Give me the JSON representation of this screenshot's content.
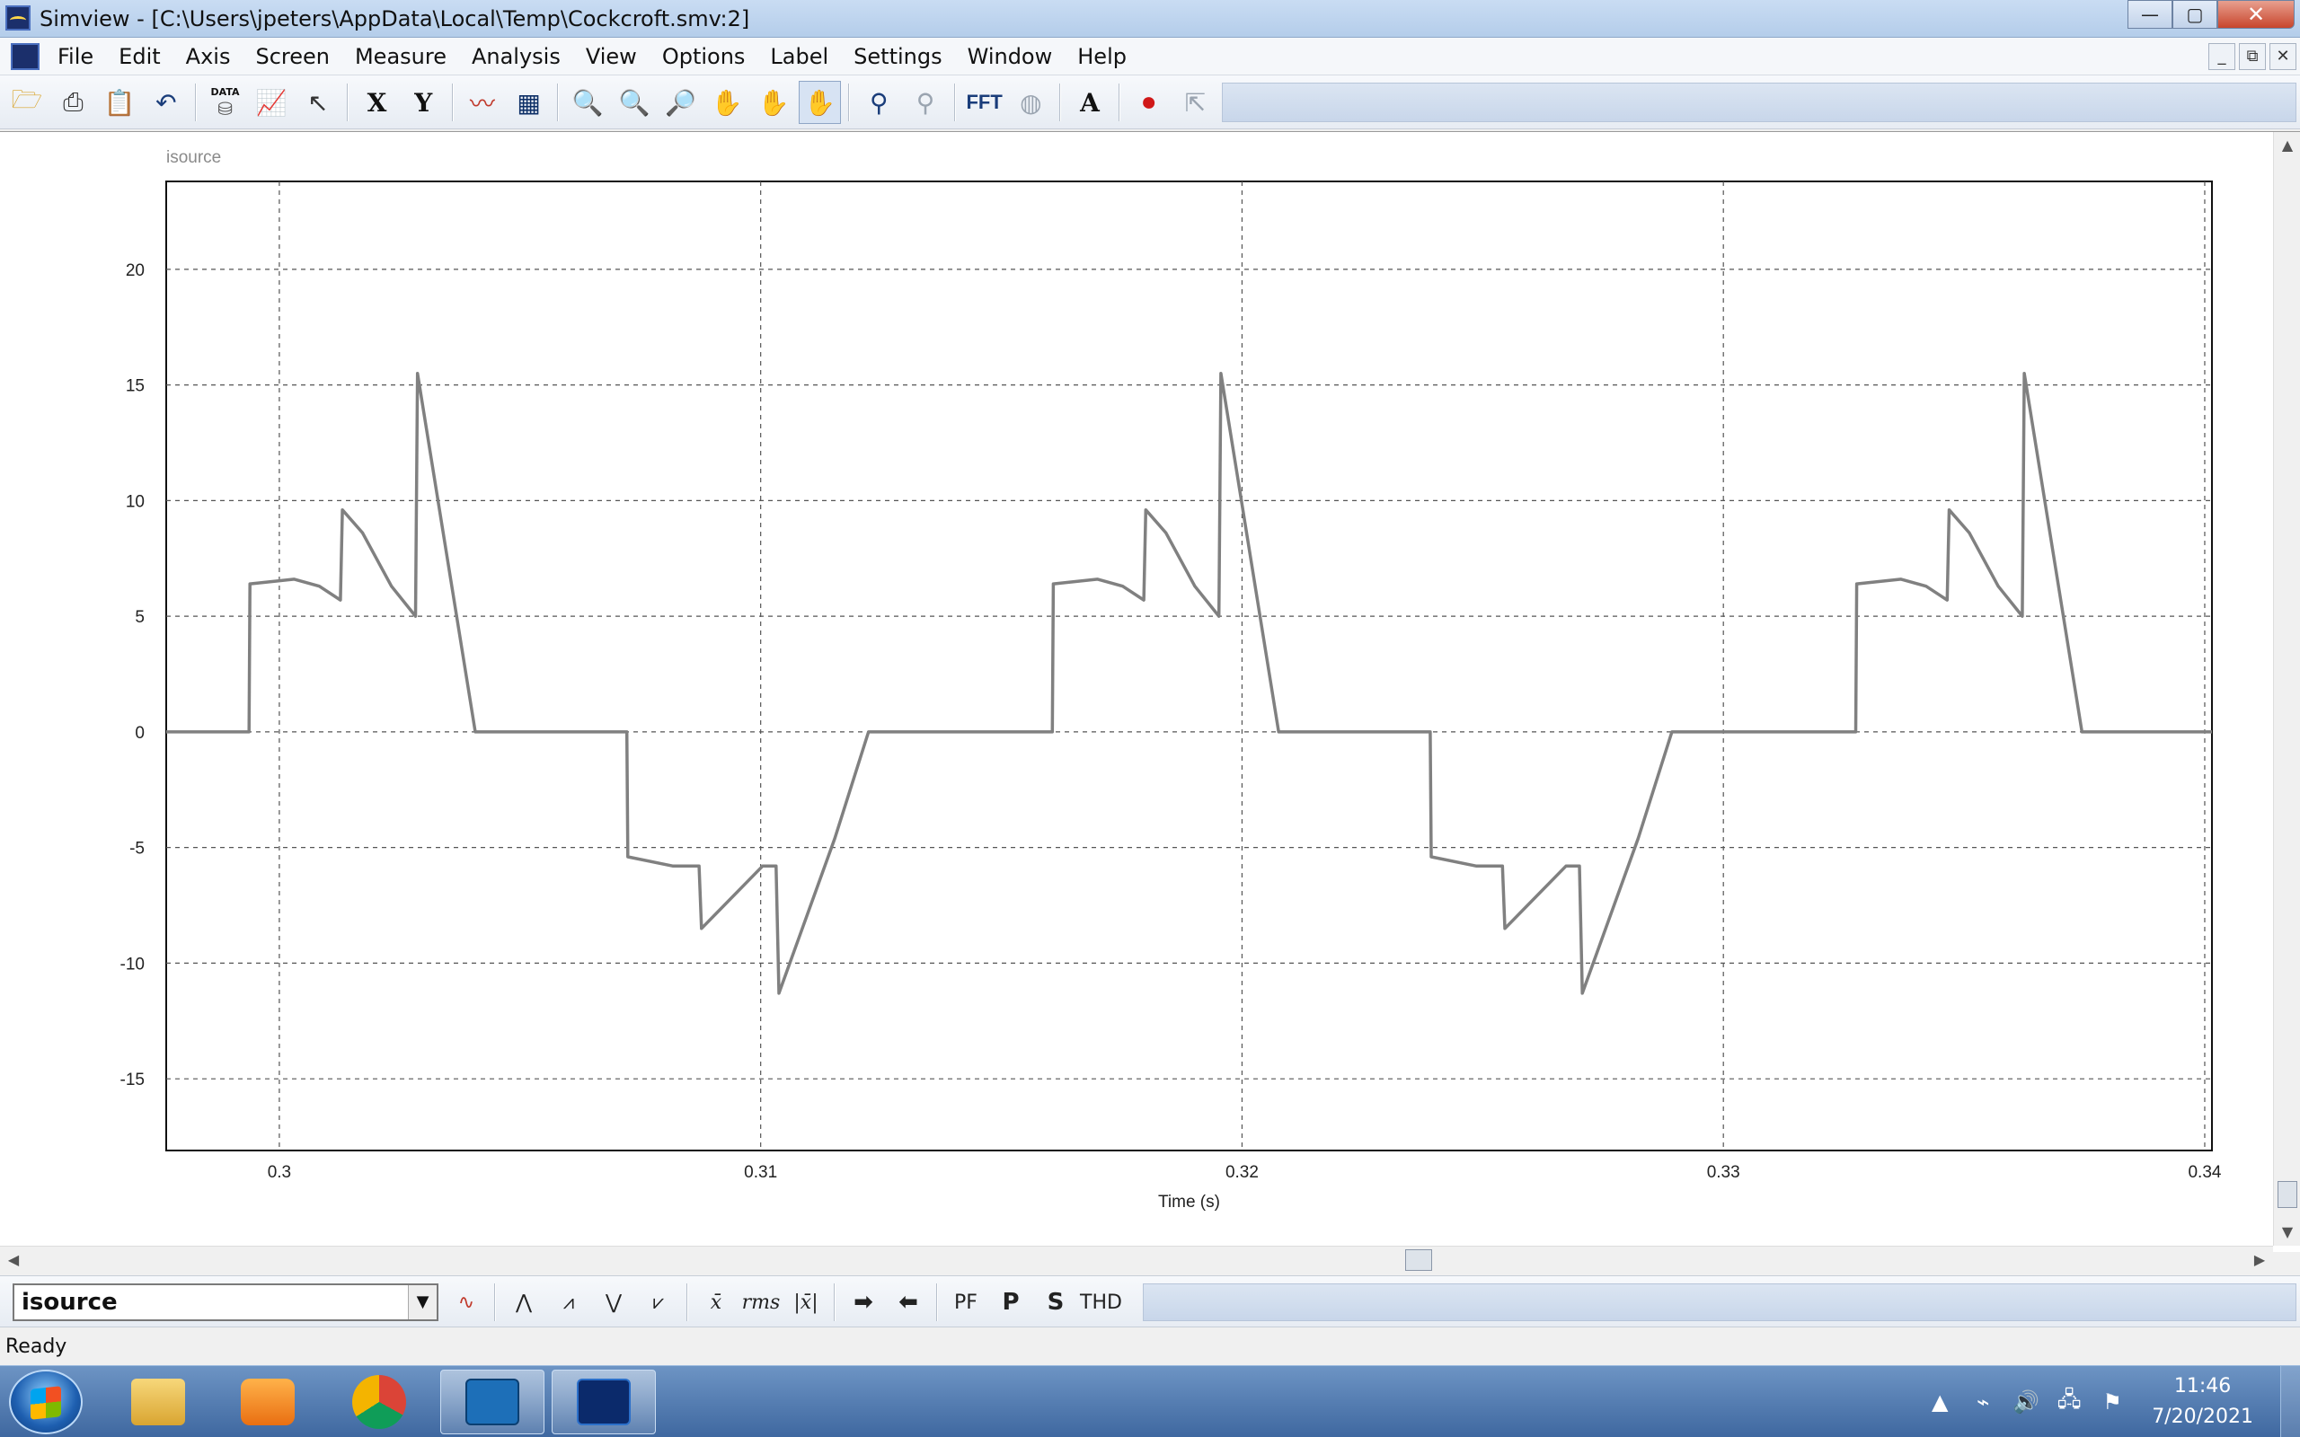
{
  "window": {
    "title": "Simview - [C:\\Users\\jpeters\\AppData\\Local\\Temp\\Cockcroft.smv:2]",
    "min_glyph": "—",
    "max_glyph": "▢",
    "close_glyph": "✕"
  },
  "mdi_controls": [
    "_",
    "⧉",
    "✕"
  ],
  "menu": [
    "File",
    "Edit",
    "Axis",
    "Screen",
    "Measure",
    "Analysis",
    "View",
    "Options",
    "Label",
    "Settings",
    "Window",
    "Help"
  ],
  "toolbar": {
    "x_axis_label": "X",
    "y_axis_label": "Y",
    "fft_label": "FFT",
    "text_label": "A",
    "data_label": "DATA"
  },
  "plot": {
    "trace_name": "isource",
    "x_axis_title": "Time (s)"
  },
  "chart_data": {
    "type": "line",
    "title": "isource",
    "xlabel": "Time (s)",
    "ylabel": "",
    "xlim": [
      0.29765,
      0.34015
    ],
    "ylim": [
      -18.1,
      23.8
    ],
    "grid": true,
    "x_ticks": [
      0.3,
      0.31,
      0.32,
      0.33,
      0.34
    ],
    "x_tick_labels": [
      "0.3",
      "0.31",
      "0.32",
      "0.33",
      "0.34"
    ],
    "y_ticks": [
      20,
      15,
      10,
      5,
      0,
      -5,
      -10,
      -15
    ],
    "y_tick_labels": [
      "20",
      "15",
      "10",
      "5",
      "0",
      "-5",
      "-10",
      "-15"
    ],
    "period": 0.01669,
    "series": [
      {
        "name": "isource",
        "color": "#808080",
        "period_template": {
          "x": [
            0.29765,
            0.29937,
            0.29939,
            0.30031,
            0.30083,
            0.30127,
            0.30131,
            0.30173,
            0.30233,
            0.30283,
            0.30287,
            0.30407,
            0.30722,
            0.30724,
            0.30818,
            0.30872,
            0.30877,
            0.31004,
            0.31032,
            0.31038,
            0.31154,
            0.31224,
            0.31434
          ],
          "y": [
            0,
            0,
            6.4,
            6.6,
            6.3,
            5.7,
            9.6,
            8.6,
            6.3,
            5.0,
            15.5,
            0,
            0,
            -5.4,
            -5.8,
            -5.8,
            -8.5,
            -5.8,
            -5.8,
            -11.3,
            -4.6,
            0,
            0
          ]
        },
        "x_end": 0.34015,
        "y_end": 0
      }
    ]
  },
  "bottom_bar": {
    "selected_variable": "isource",
    "dropdown_glyph": "▼",
    "buttons": [
      "x̄",
      "rms",
      "|x̄|",
      "PF",
      "P",
      "S",
      "THD"
    ]
  },
  "status": "Ready",
  "clock": {
    "time": "11:46",
    "date": "7/20/2021"
  },
  "tray_icons": [
    "▲",
    "⌁",
    "🔊",
    "🖧",
    "⚑"
  ]
}
